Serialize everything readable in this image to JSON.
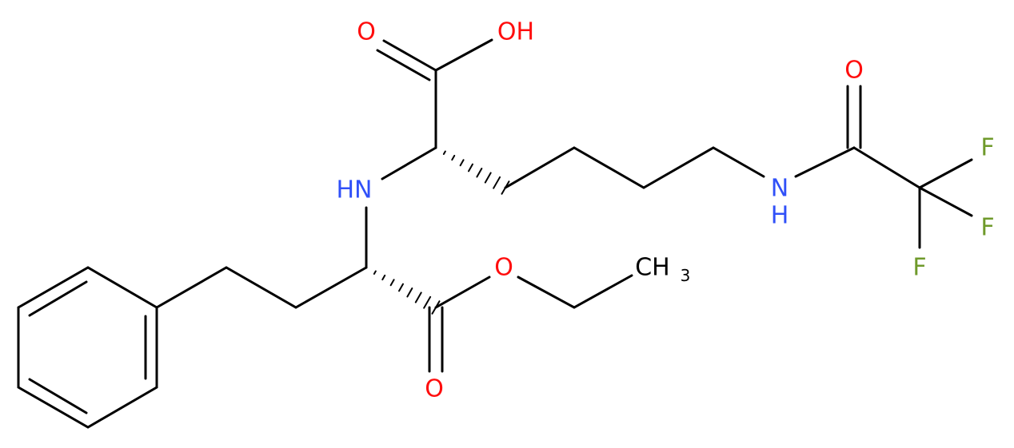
{
  "atoms": [
    {
      "label": "O"
    },
    {
      "label": "OH"
    },
    {
      "label": "HN"
    },
    {
      "label": "N"
    },
    {
      "label": "H"
    },
    {
      "label": "O"
    },
    {
      "label": "F"
    },
    {
      "label": "F"
    },
    {
      "label": "F"
    },
    {
      "label": "O"
    },
    {
      "label": "CH",
      "sub": "3"
    },
    {
      "label": "O"
    }
  ]
}
